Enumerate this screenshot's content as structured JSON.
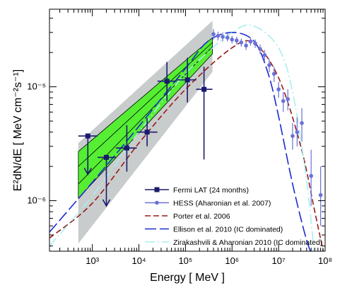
{
  "chart_data": {
    "type": "scatter",
    "xlabel": "Energy [ MeV ]",
    "ylabel": "E²dN/dE [ MeV cm⁻²s⁻¹]",
    "x_scale": "log",
    "y_scale": "log",
    "xlim": [
      120,
      100000000
    ],
    "ylim": [
      3.6e-07,
      4.8e-05
    ],
    "x_ticks": [
      {
        "value": 1000,
        "label": "10³"
      },
      {
        "value": 10000,
        "label": "10⁴"
      },
      {
        "value": 100000,
        "label": "10⁵"
      },
      {
        "value": 1000000,
        "label": "10⁶"
      },
      {
        "value": 10000000,
        "label": "10⁷"
      },
      {
        "value": 100000000,
        "label": "10⁸"
      }
    ],
    "y_ticks": [
      {
        "value": 1e-06,
        "label": "10⁻⁶"
      },
      {
        "value": 1e-05,
        "label": "10⁻⁵"
      }
    ],
    "legend_position": "bottom-right",
    "bands": [
      {
        "name": "fermi-systematic-band",
        "color": "#c8cccc",
        "x": [
          500,
          380000
        ],
        "upper": [
          3.2e-06,
          3.8e-05
        ],
        "lower": [
          4.2e-07,
          1.35e-05
        ]
      },
      {
        "name": "fermi-statistical-band",
        "color": "#55ee33",
        "x": [
          500,
          380000
        ],
        "upper": [
          2.7e-06,
          2.7e-05
        ],
        "lower": [
          1.05e-06,
          1.95e-05
        ],
        "best_fit_upper": [
          2e-06,
          2.45e-05
        ],
        "best_fit_lower": [
          1.4e-06,
          2.25e-05
        ]
      }
    ],
    "series": [
      {
        "name": "Fermi LAT (24 months)",
        "style": "square-errorbar",
        "color": "#1a1a6e",
        "points": [
          {
            "x": 800,
            "y": 3.7e-06,
            "xlo": 500,
            "xhi": 1300,
            "upper_limit_to": 1.7e-06
          },
          {
            "x": 2000,
            "y": 2.4e-06,
            "xlo": 1300,
            "xhi": 3200,
            "upper_limit_to": 9e-07
          },
          {
            "x": 5500,
            "y": 2.9e-06,
            "xlo": 3200,
            "xhi": 9000,
            "ylo": 1.8e-06,
            "yhi": 4.6e-06
          },
          {
            "x": 15000,
            "y": 4e-06,
            "xlo": 9000,
            "xhi": 25000,
            "ylo": 3e-06,
            "yhi": 5.3e-06
          },
          {
            "x": 40000,
            "y": 1.12e-05,
            "xlo": 25000,
            "xhi": 65000,
            "ylo": 7.5e-06,
            "yhi": 1.65e-05
          },
          {
            "x": 110000,
            "y": 1.15e-05,
            "xlo": 65000,
            "xhi": 170000,
            "ylo": 7.3e-06,
            "yhi": 1.8e-05
          },
          {
            "x": 250000,
            "y": 9.5e-06,
            "xlo": 170000,
            "xhi": 380000,
            "ylo": 2.3e-06,
            "yhi": 1.5e-05
          }
        ]
      },
      {
        "name": "HESS (Aharonian et al. 2007)",
        "style": "circle-errorbar",
        "color": "#6a70d8",
        "points": [
          {
            "x": 400000,
            "y": 2.9e-05,
            "ylo": 2.6e-05,
            "yhi": 3.2e-05
          },
          {
            "x": 500000,
            "y": 2.8e-05,
            "ylo": 2.55e-05,
            "yhi": 3.05e-05
          },
          {
            "x": 630000,
            "y": 2.75e-05,
            "ylo": 2.5e-05,
            "yhi": 3e-05
          },
          {
            "x": 800000,
            "y": 2.7e-05,
            "ylo": 2.5e-05,
            "yhi": 2.95e-05
          },
          {
            "x": 1000000,
            "y": 2.6e-05,
            "ylo": 2.4e-05,
            "yhi": 2.8e-05
          },
          {
            "x": 1260000,
            "y": 2.55e-05,
            "ylo": 2.35e-05,
            "yhi": 2.75e-05
          },
          {
            "x": 1580000,
            "y": 2.45e-05,
            "ylo": 2.25e-05,
            "yhi": 2.65e-05
          },
          {
            "x": 2000000,
            "y": 2.3e-05,
            "ylo": 2.1e-05,
            "yhi": 2.5e-05
          },
          {
            "x": 2500000,
            "y": 2.5e-05,
            "ylo": 2.3e-05,
            "yhi": 2.7e-05
          },
          {
            "x": 3160000,
            "y": 2.4e-05,
            "ylo": 2.2e-05,
            "yhi": 2.6e-05
          },
          {
            "x": 4000000,
            "y": 2.15e-05,
            "ylo": 1.95e-05,
            "yhi": 2.35e-05
          },
          {
            "x": 5000000,
            "y": 1.9e-05,
            "ylo": 1.7e-05,
            "yhi": 2.1e-05
          },
          {
            "x": 6300000,
            "y": 1.55e-05,
            "ylo": 1.35e-05,
            "yhi": 1.75e-05
          },
          {
            "x": 8000000,
            "y": 1.3e-05,
            "ylo": 1.1e-05,
            "yhi": 1.5e-05
          },
          {
            "x": 10000000,
            "y": 9.5e-06,
            "ylo": 8e-06,
            "yhi": 1.1e-05
          },
          {
            "x": 12600000,
            "y": 7.5e-06,
            "ylo": 6e-06,
            "yhi": 9e-06
          },
          {
            "x": 15800000,
            "y": 7.8e-06,
            "ylo": 6.2e-06,
            "yhi": 9.5e-06
          },
          {
            "x": 20000000,
            "y": 3.7e-06,
            "ylo": 2.8e-06,
            "yhi": 4.8e-06
          },
          {
            "x": 25000000,
            "y": 4e-06,
            "ylo": 3e-06,
            "yhi": 5.4e-06
          },
          {
            "x": 31600000,
            "y": 4.8e-06,
            "ylo": 3.3e-06,
            "yhi": 6.5e-06
          },
          {
            "x": 50000000,
            "y": 1.65e-06,
            "ylo": 9e-07,
            "yhi": 2.8e-06
          },
          {
            "x": 80000000,
            "y": 1.12e-06,
            "ylo": 6e-07,
            "yhi": 2e-06
          }
        ]
      },
      {
        "name": "Porter et al. 2006",
        "style": "dashed",
        "color": "#991a1a",
        "x": [
          120,
          1000,
          10000,
          100000,
          1000000,
          3000000,
          10000000,
          30000000,
          60000000,
          100000000
        ],
        "y": [
          4.7e-07,
          9.5e-07,
          3.2e-06,
          9.5e-06,
          2.2e-05,
          2.4e-05,
          1.2e-05,
          3e-06,
          8e-07,
          3e-07
        ]
      },
      {
        "name": "Ellison et al. 2010 (IC dominated)",
        "style": "long-dashed",
        "color": "#1a2ad0",
        "x": [
          120,
          1000,
          10000,
          100000,
          300000,
          1000000,
          3000000,
          6000000,
          10000000,
          20000000,
          40000000,
          60000000
        ],
        "y": [
          5.3e-07,
          1.45e-06,
          4.5e-06,
          1.45e-05,
          2.5e-05,
          3e-05,
          2.5e-05,
          1.3e-05,
          5.5e-06,
          1.4e-06,
          4.5e-07,
          3e-07
        ]
      },
      {
        "name": "Zirakashvili & Aharonian 2010 (IC dominated)",
        "style": "dash-dot",
        "color": "#aaeeee",
        "x": [
          120,
          1000,
          10000,
          100000,
          1000000,
          3000000,
          10000000,
          20000000,
          40000000,
          60000000
        ],
        "y": [
          4e-07,
          1.1e-06,
          4e-06,
          1.3e-05,
          3e-05,
          3.4e-05,
          2.2e-05,
          9e-06,
          1.5e-06,
          3e-07
        ]
      }
    ]
  }
}
